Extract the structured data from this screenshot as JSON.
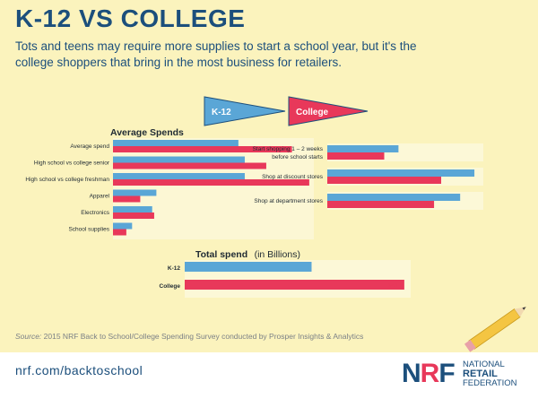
{
  "header": {
    "title": "K-12 VS COLLEGE",
    "subtitle": "Tots and teens may require more supplies to start a school year, but it's the college shoppers that bring in the most business for retailers."
  },
  "legend": {
    "k12": "K-12",
    "college": "College"
  },
  "colors": {
    "k12": "#5aa6d6",
    "college": "#e8385a",
    "text_blue": "#1c4f7c",
    "background": "#fbf3bd"
  },
  "chart_data": [
    {
      "type": "bar",
      "orientation": "horizontal",
      "title": "Average Spends",
      "categories": [
        "Average spend",
        "High school vs college senior",
        "High school vs college freshman",
        "Apparel",
        "Electronics",
        "School supplies"
      ],
      "series": [
        {
          "name": "K-12",
          "values": [
            630,
            662,
            662,
            218,
            197,
            96
          ],
          "labels": [
            "$630",
            "$662",
            "$662",
            "$218",
            "$197",
            "$96"
          ]
        },
        {
          "name": "College",
          "values": [
            899,
            770,
            986,
            137,
            207,
            67
          ],
          "labels": [
            "$899",
            "$770",
            "$986",
            "$137",
            "$207",
            "$67"
          ]
        }
      ],
      "xlim": [
        0,
        1000
      ]
    },
    {
      "type": "bar",
      "orientation": "horizontal",
      "title": "",
      "categories": [
        "Start shopping 1 – 2 weeks before school starts",
        "Shop at discount stores",
        "Shop at department stores"
      ],
      "category_lines": [
        [
          "Start shopping 1 – 2 weeks",
          "before school starts"
        ],
        [
          "Shop at discount stores"
        ],
        [
          "Shop at department stores"
        ]
      ],
      "series": [
        {
          "name": "K-12",
          "values": [
            30,
            62,
            56
          ],
          "labels": [
            "30%",
            "62%",
            "56%"
          ]
        },
        {
          "name": "College",
          "values": [
            24,
            48,
            45
          ],
          "labels": [
            "24%",
            "48%",
            "45%"
          ]
        }
      ],
      "xlim": [
        0,
        65
      ]
    },
    {
      "type": "bar",
      "orientation": "horizontal",
      "title": "Total spend",
      "title_unit": "(in Billions)",
      "categories": [
        "K-12",
        "College"
      ],
      "values": [
        24.9,
        43.1
      ],
      "labels": [
        "$24.9",
        "$43.1"
      ],
      "xlim": [
        0,
        44
      ]
    }
  ],
  "footer": {
    "source_label": "Source:",
    "source_text": " 2015 NRF Back to School/College Spending Survey conducted by Prosper Insights & Analytics",
    "url": "nrf.com/backtoschool",
    "logo_mark_n": "N",
    "logo_mark_r": "R",
    "logo_mark_f": "F",
    "logo_line1": "NATIONAL",
    "logo_line2": "RETAIL",
    "logo_line3": "FEDERATION"
  }
}
